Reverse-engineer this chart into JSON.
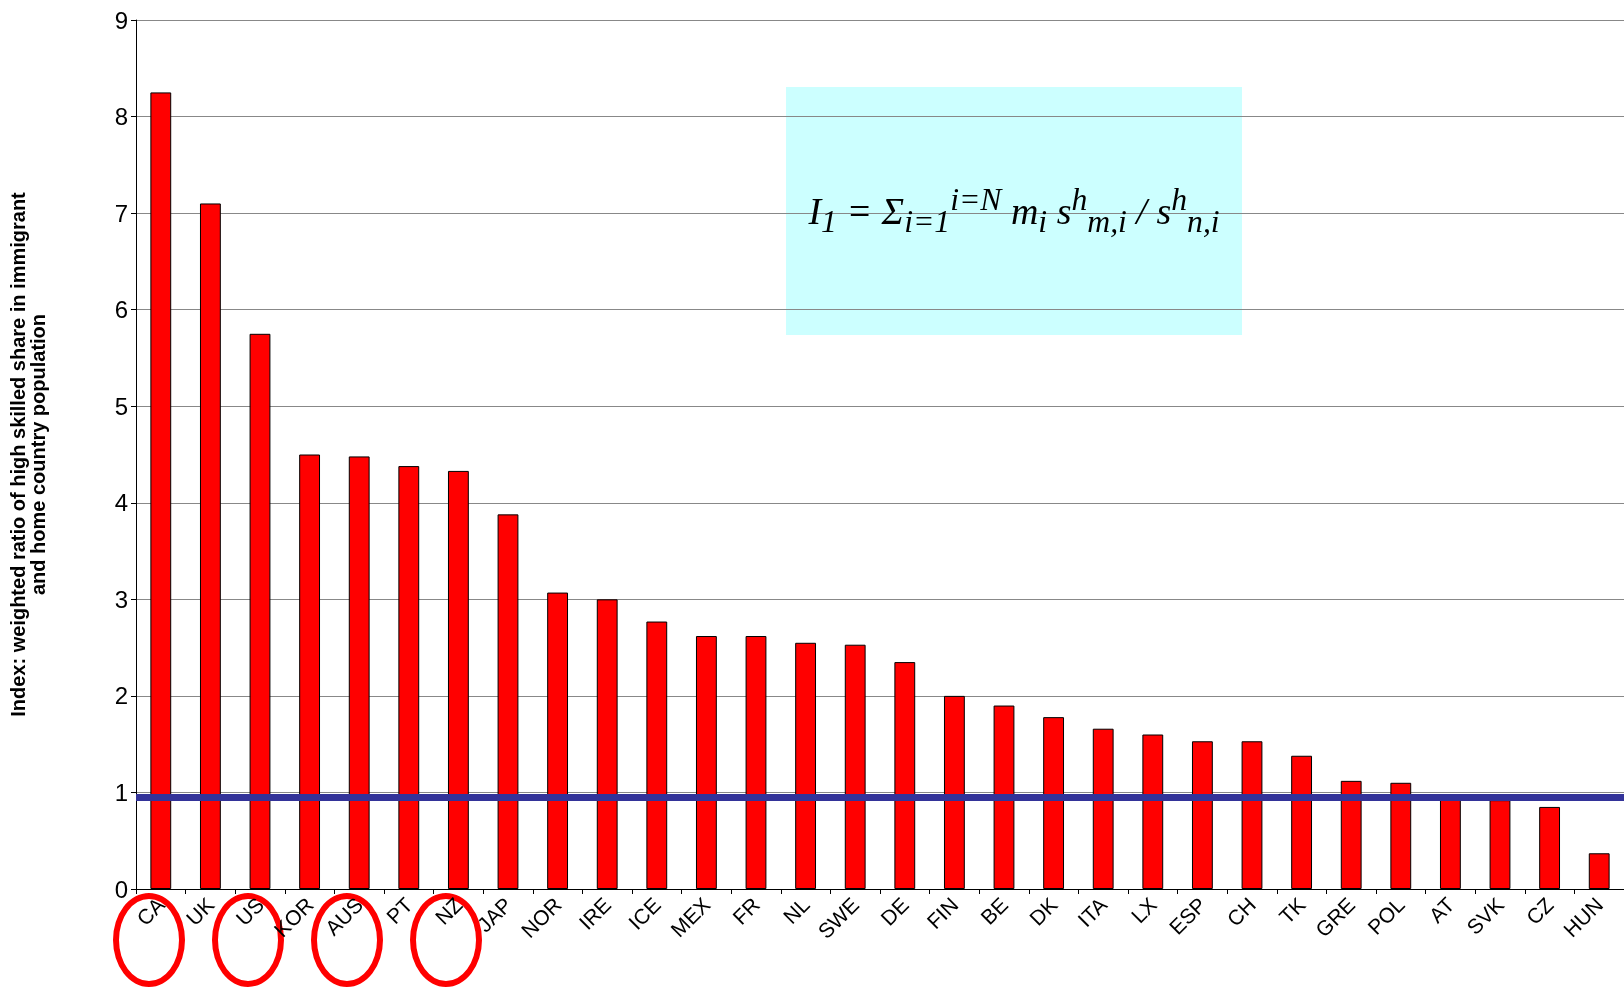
{
  "chart_data": {
    "type": "bar",
    "ylabel": "Index: weighted ratio of high skilled share in immigrant\nand home country population",
    "categories": [
      "CA",
      "UK",
      "US",
      "KOR",
      "AUS",
      "PT",
      "NZ",
      "JAP",
      "NOR",
      "IRE",
      "ICE",
      "MEX",
      "FR",
      "NL",
      "SWE",
      "DE",
      "FIN",
      "BE",
      "DK",
      "ITA",
      "LX",
      "ESP",
      "CH",
      "TK",
      "GRE",
      "POL",
      "AT",
      "SVK",
      "CZ",
      "HUN"
    ],
    "values": [
      8.25,
      7.1,
      5.75,
      4.5,
      4.48,
      4.38,
      4.33,
      3.88,
      3.07,
      3.0,
      2.77,
      2.62,
      2.62,
      2.55,
      2.53,
      2.35,
      2.0,
      1.9,
      1.78,
      1.66,
      1.6,
      1.53,
      1.53,
      1.38,
      1.12,
      1.1,
      0.95,
      0.92,
      0.85,
      0.37
    ],
    "color": "#ff0000",
    "ylim": [
      0,
      9
    ],
    "yticks": [
      0,
      1,
      2,
      3,
      4,
      5,
      6,
      7,
      8,
      9
    ],
    "grid": "y",
    "ref_lines": [
      {
        "axis": "y",
        "value": 0.95,
        "color": "#333399",
        "line_style": "solid"
      }
    ],
    "annotations": [
      "I$_{1}$ = Σ$_{i=1}$$^{i=N}$ m$_{i}$ s$^{h}$$_{m,i}$ / s$^{h}$$_{n,i}$"
    ]
  }
}
